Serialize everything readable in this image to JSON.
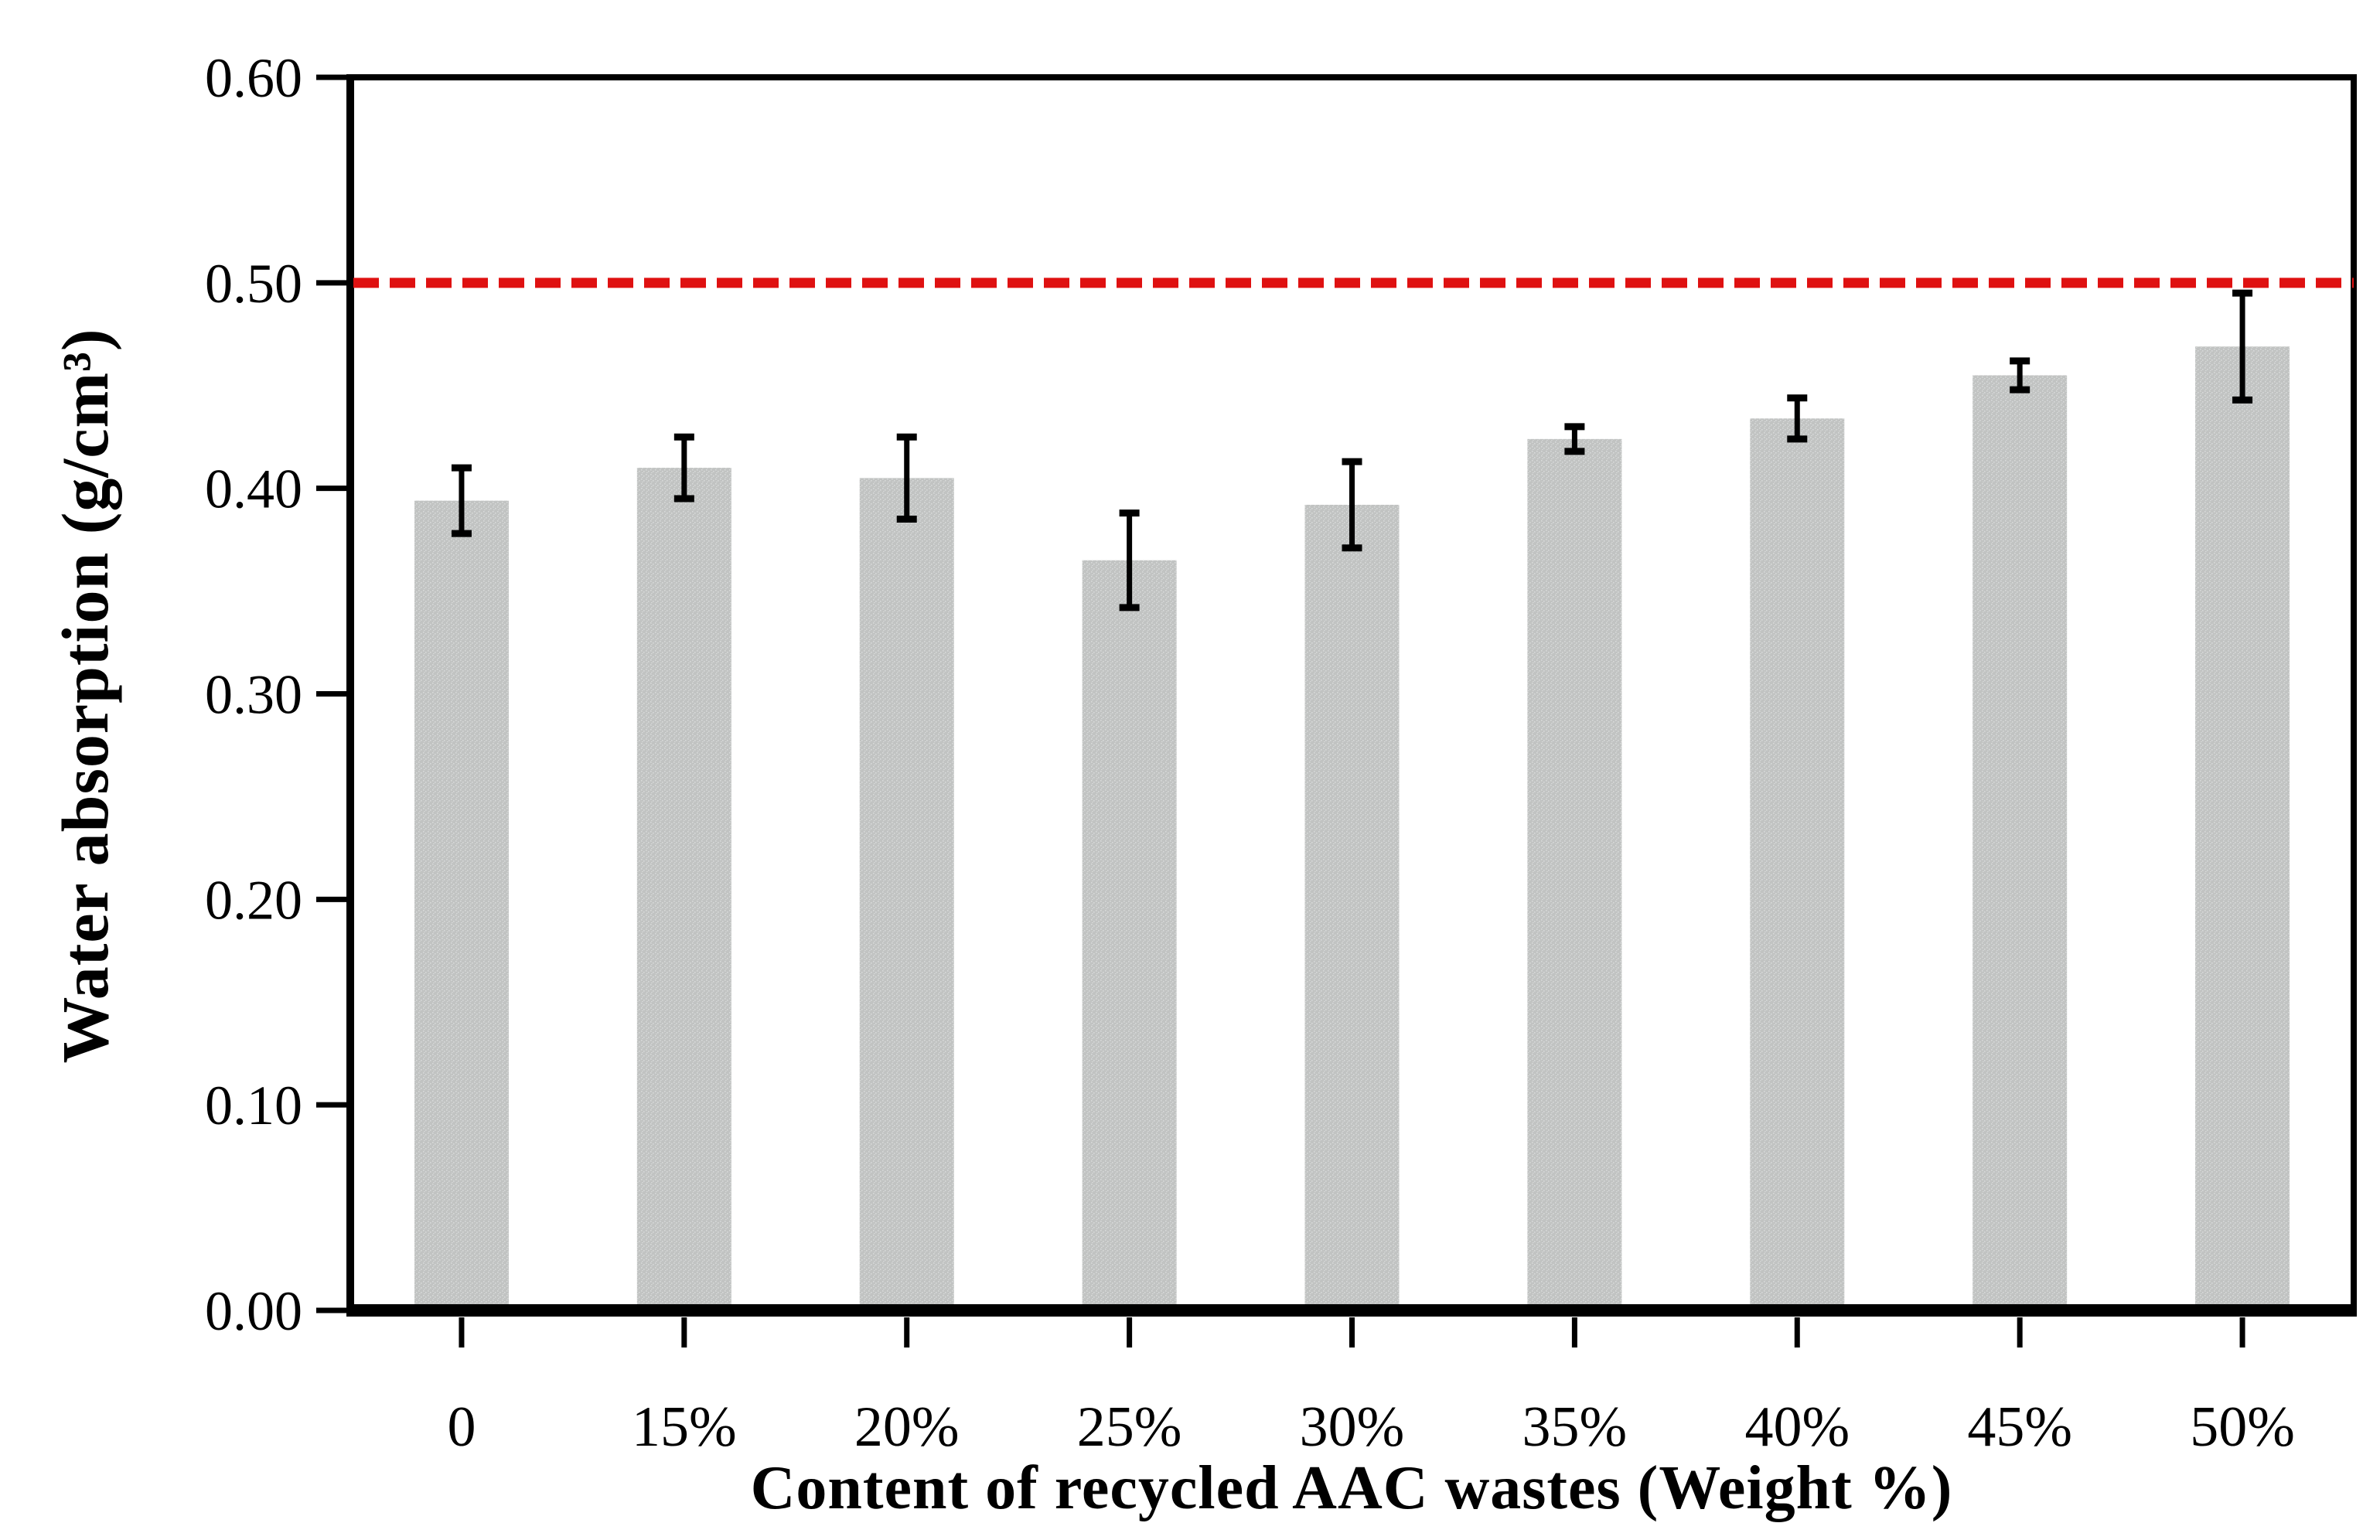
{
  "figure": {
    "background": "#ffffff"
  },
  "chart_data": {
    "type": "bar",
    "title": "",
    "xlabel": "Content of recycled AAC wastes (Weight %)",
    "ylabel": "Water absorption (g/cm³)",
    "categories": [
      "0",
      "15%",
      "20%",
      "25%",
      "30%",
      "35%",
      "40%",
      "45%",
      "50%"
    ],
    "values": [
      0.394,
      0.41,
      0.405,
      0.365,
      0.392,
      0.424,
      0.434,
      0.455,
      0.469
    ],
    "errors": [
      0.016,
      0.015,
      0.02,
      0.023,
      0.021,
      0.006,
      0.01,
      0.007,
      0.026
    ],
    "ylim": [
      0.0,
      0.6
    ],
    "ytick_step": 0.1,
    "ytick_labels": [
      "0.00",
      "0.10",
      "0.20",
      "0.30",
      "0.40",
      "0.50",
      "0.60"
    ],
    "reference_line": {
      "value": 0.5,
      "style": "dashed",
      "color": "#df1111"
    },
    "grid": false,
    "legend": null,
    "bar_color": "#c1c3c2",
    "bar_speck_color": "#d8dad9",
    "axis_color": "#000000"
  }
}
